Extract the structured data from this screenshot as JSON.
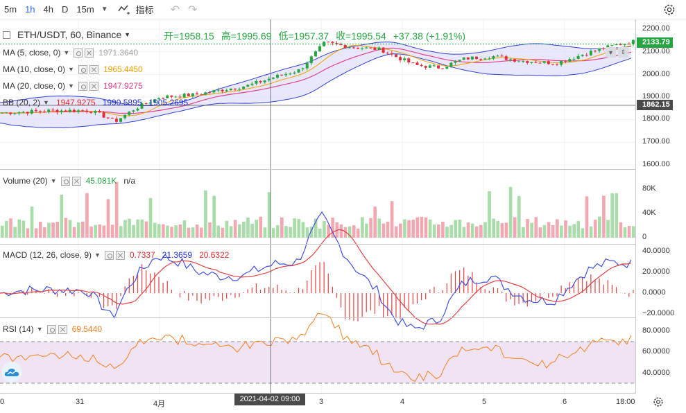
{
  "toolbar": {
    "timeframes": [
      "5m",
      "1h",
      "4h",
      "D",
      "15m"
    ],
    "active_timeframe": "1h",
    "indicators_label": "指标"
  },
  "symbol": {
    "title": "ETH/USDT, 60, Binance",
    "open": "开=1958.15",
    "high": "高=1995.69",
    "low": "低=1957.37",
    "close": "收=1995.54",
    "change": "+37.38 (+1.91%)"
  },
  "indicators": {
    "ma5": {
      "label": "MA (5, close, 0)",
      "value": "1971.3640",
      "color": "#a0a0a0"
    },
    "ma10": {
      "label": "MA (10, close, 0)",
      "value": "1965.4450",
      "color": "#f0a000"
    },
    "ma20": {
      "label": "MA (20, close, 0)",
      "value": "1947.9275",
      "color": "#e0408a"
    },
    "bb": {
      "label": "BB (20, 2)",
      "values": [
        "1947.9275",
        "1990.5895",
        "1905.2695"
      ],
      "colors": [
        "#e03030",
        "#2030d0",
        "#2030d0"
      ]
    },
    "volume": {
      "label": "Volume (20)",
      "value": "45.081K",
      "extra": "n/a"
    },
    "macd": {
      "label": "MACD (12, 26, close, 9)",
      "values": [
        "0.7337",
        "21.3659",
        "20.6322"
      ],
      "colors": [
        "#e03030",
        "#2030d0",
        "#e03030"
      ]
    },
    "rsi": {
      "label": "RSI (14)",
      "value": "69.5440",
      "color": "#f08020"
    }
  },
  "price_axis": {
    "ticks": [
      "2200.00",
      "2133.79",
      "2100.00",
      "2000.00",
      "1900.00",
      "1862.15",
      "1800.00",
      "1700.00",
      "1600.00"
    ],
    "current_price": "2133.79",
    "crosshair_price": "1862.15"
  },
  "volume_axis": {
    "ticks": [
      "80K",
      "40K",
      "0"
    ]
  },
  "macd_axis": {
    "ticks": [
      "40.0000",
      "20.0000",
      "0.0000",
      "−20.0000"
    ]
  },
  "rsi_axis": {
    "ticks": [
      "80.0000",
      "60.0000",
      "40.0000"
    ]
  },
  "time_axis": {
    "ticks": [
      "0",
      "31",
      "4月",
      "3",
      "4",
      "5",
      "6",
      "18:00"
    ],
    "crosshair_time": "2021-04-02   09:00"
  },
  "colors": {
    "up": "#26a641",
    "down": "#e03040",
    "bb_fill": "#e0e0f8",
    "rsi_band": "#f0e4f4"
  }
}
